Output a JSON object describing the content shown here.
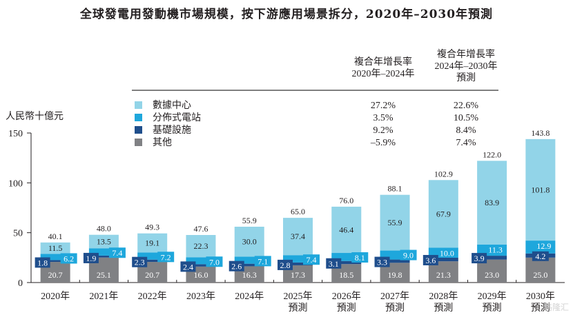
{
  "title": "全球發電用發動機市場規模，按下游應用場景拆分，2020年–2030年預測",
  "watermark": "格隆汇",
  "chart_data": {
    "type": "bar",
    "stacked": true,
    "title": "全球發電用發動機市場規模，按下游應用場景拆分，2020年–2030年預測",
    "ylabel": "人民幣十億元",
    "xlabel": "",
    "ylim": [
      0,
      150
    ],
    "yticks": [
      0,
      50,
      100,
      150
    ],
    "grid": false,
    "categories": [
      "2020年",
      "2021年",
      "2022年",
      "2023年",
      "2024年",
      "2025年\n預測",
      "2026年\n預測",
      "2027年\n預測",
      "2028年\n預測",
      "2029年\n預測",
      "2030年\n預測"
    ],
    "series": [
      {
        "name": "其他",
        "color": "#808184",
        "values": [
          20.7,
          25.1,
          20.7,
          16.0,
          16.3,
          17.3,
          18.5,
          19.8,
          21.3,
          23.0,
          25.0
        ]
      },
      {
        "name": "基礎設施",
        "color": "#1f4e8c",
        "values": [
          1.8,
          1.9,
          2.3,
          2.4,
          2.6,
          2.8,
          3.1,
          3.3,
          3.6,
          3.9,
          4.2
        ]
      },
      {
        "name": "分佈式電站",
        "color": "#1ea7dc",
        "values": [
          6.2,
          7.4,
          7.2,
          7.0,
          7.1,
          7.4,
          8.1,
          9.0,
          10.0,
          11.3,
          12.9
        ]
      },
      {
        "name": "數據中心",
        "color": "#92d4e8",
        "values": [
          11.5,
          13.5,
          19.1,
          22.3,
          30.0,
          37.4,
          46.4,
          55.9,
          67.9,
          83.9,
          101.8
        ]
      }
    ],
    "totals": [
      40.1,
      48.0,
      49.3,
      47.6,
      55.9,
      65.0,
      76.0,
      88.1,
      102.9,
      122.0,
      143.8
    ],
    "legend": {
      "placement": "top-center",
      "entries": [
        "數據中心",
        "分佈式電站",
        "基礎設施",
        "其他"
      ],
      "colors": [
        "#92d4e8",
        "#1ea7dc",
        "#1f4e8c",
        "#808184"
      ]
    },
    "cagr_table": {
      "headers": [
        [
          "複合年增長率",
          "2020年–2024年"
        ],
        [
          "複合年增長率",
          "2024年–2030年",
          "預測"
        ]
      ],
      "rows": [
        {
          "name": "數據中心",
          "cagr_2020_2024": "27.2%",
          "cagr_2024_2030": "22.6%"
        },
        {
          "name": "分佈式電站",
          "cagr_2020_2024": "3.5%",
          "cagr_2024_2030": "10.5%"
        },
        {
          "name": "基礎設施",
          "cagr_2020_2024": "9.2%",
          "cagr_2024_2030": "8.4%"
        },
        {
          "name": "其他",
          "cagr_2020_2024": "–5.9%",
          "cagr_2024_2030": "7.4%"
        }
      ]
    }
  }
}
